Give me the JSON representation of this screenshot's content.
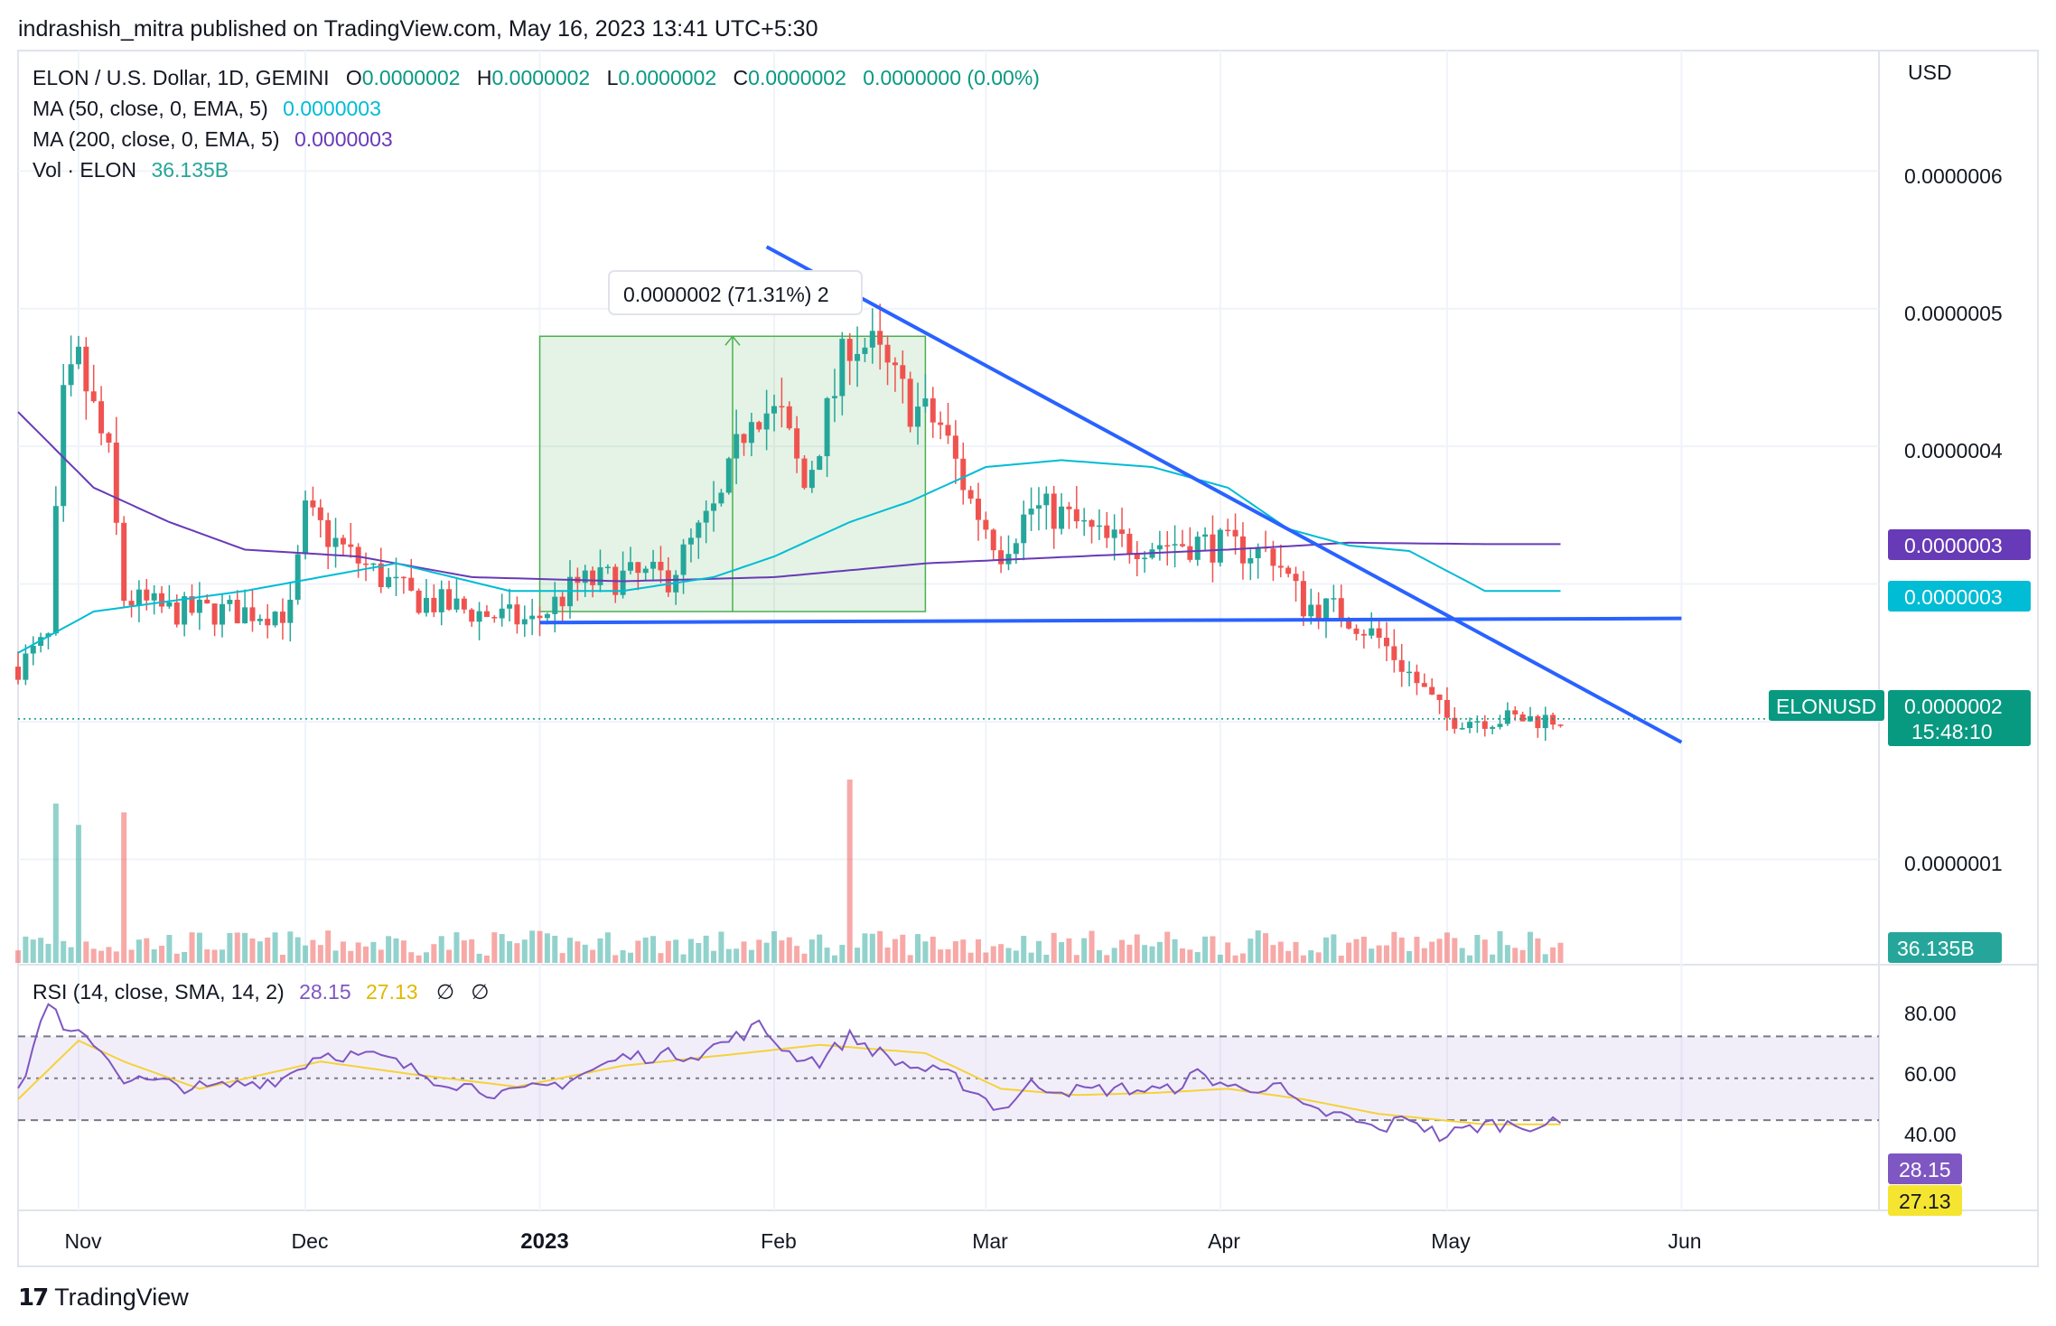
{
  "header": {
    "published": "indrashish_mitra published on TradingView.com, May 16, 2023 13:41 UTC+5:30"
  },
  "legend": {
    "symbol": "ELON / U.S. Dollar, 1D, GEMINI",
    "ohlc": [
      {
        "k": "O",
        "v": "0.0000002"
      },
      {
        "k": "H",
        "v": "0.0000002"
      },
      {
        "k": "L",
        "v": "0.0000002"
      },
      {
        "k": "C",
        "v": "0.0000002"
      }
    ],
    "change": "0.0000000 (0.00%)",
    "ma50_label": "MA (50, close, 0, EMA, 5)",
    "ma50_value": "0.0000003",
    "ma200_label": "MA (200, close, 0, EMA, 5)",
    "ma200_value": "0.0000003",
    "vol_label": "Vol · ELON",
    "vol_value": "36.135B",
    "rsi_label": "RSI (14, close, SMA, 14, 2)",
    "rsi_value": "28.15",
    "rsi_ma_value": "27.13",
    "rsi_flags": [
      "∅",
      "∅"
    ]
  },
  "axis": {
    "currency": "USD",
    "price_ticks": [
      "0.0000006",
      "0.0000005",
      "0.0000004",
      "0.0000001"
    ],
    "rsi_ticks": [
      "80.00",
      "60.00",
      "40.00"
    ],
    "x_ticks": [
      {
        "label": "Nov",
        "date": "2022-11-01",
        "bold": false
      },
      {
        "label": "Dec",
        "date": "2022-12-01",
        "bold": false
      },
      {
        "label": "2023",
        "date": "2023-01-01",
        "bold": true
      },
      {
        "label": "Feb",
        "date": "2023-02-01",
        "bold": false
      },
      {
        "label": "Mar",
        "date": "2023-03-01",
        "bold": false
      },
      {
        "label": "Apr",
        "date": "2023-04-01",
        "bold": false
      },
      {
        "label": "May",
        "date": "2023-05-01",
        "bold": false
      },
      {
        "label": "Jun",
        "date": "2023-06-01",
        "bold": false
      }
    ]
  },
  "badges": {
    "ma200": "0.0000003",
    "ma50": "0.0000003",
    "symbol_tag": "ELONUSD",
    "last_price": "0.0000002",
    "countdown": "15:48:10",
    "volume": "36.135B",
    "rsi": "28.15",
    "rsi_ma": "27.13"
  },
  "measure_label": "0.0000002 (71.31%) 2",
  "footer": {
    "brand": "TradingView",
    "logo": "tradingview-logo-icon"
  },
  "colors": {
    "up": "#26a69a",
    "down": "#ef5350",
    "ma50": "#00bcd4",
    "ma200": "#673ab7",
    "rsi": "#7e57c2",
    "rsi_ma": "#f5d23a",
    "trendline": "#2962ff",
    "measure": "#4caf50"
  },
  "chart_data": {
    "type": "candlestick",
    "symbol": "ELONUSD",
    "x_range": [
      "2022-10-24",
      "2023-06-15"
    ],
    "last_bar_date": "2023-05-16",
    "price_axis": {
      "min": 6e-08,
      "max": 6.3e-07
    },
    "rsi_axis": {
      "min": 10,
      "max": 92,
      "band": [
        30,
        70
      ],
      "mid": 50
    },
    "waypoints_close": [
      [
        0,
        2.4e-07
      ],
      [
        4,
        2.6e-07
      ],
      [
        6,
        4.3e-07
      ],
      [
        8,
        4.6e-07
      ],
      [
        12,
        3.9e-07
      ],
      [
        14,
        2.9e-07
      ],
      [
        20,
        2.8e-07
      ],
      [
        30,
        2.8e-07
      ],
      [
        36,
        2.8e-07
      ],
      [
        38,
        3.5e-07
      ],
      [
        44,
        3.2e-07
      ],
      [
        52,
        2.9e-07
      ],
      [
        60,
        2.8e-07
      ],
      [
        68,
        2.72e-07
      ],
      [
        74,
        3e-07
      ],
      [
        80,
        3.05e-07
      ],
      [
        86,
        3.05e-07
      ],
      [
        93,
        3.6e-07
      ],
      [
        97,
        4.3e-07
      ],
      [
        101,
        4.2e-07
      ],
      [
        104,
        3.7e-07
      ],
      [
        108,
        4.4e-07
      ],
      [
        110,
        4.8e-07
      ],
      [
        113,
        4.7e-07
      ],
      [
        118,
        4.3e-07
      ],
      [
        122,
        4.15e-07
      ],
      [
        126,
        3.6e-07
      ],
      [
        130,
        3.25e-07
      ],
      [
        134,
        3.55e-07
      ],
      [
        138,
        3.5e-07
      ],
      [
        144,
        3.3e-07
      ],
      [
        150,
        3.3e-07
      ],
      [
        156,
        3.3e-07
      ],
      [
        162,
        3.25e-07
      ],
      [
        166,
        3.22e-07
      ],
      [
        170,
        2.85e-07
      ],
      [
        175,
        2.8e-07
      ],
      [
        180,
        2.6e-07
      ],
      [
        184,
        2.35e-07
      ],
      [
        189,
        2.02e-07
      ],
      [
        194,
        2.02e-07
      ]
    ],
    "ma50_waypoints": [
      [
        0,
        2.5e-07
      ],
      [
        10,
        2.8e-07
      ],
      [
        30,
        2.95e-07
      ],
      [
        50,
        3.15e-07
      ],
      [
        65,
        2.95e-07
      ],
      [
        80,
        2.95e-07
      ],
      [
        92,
        3.05e-07
      ],
      [
        100,
        3.2e-07
      ],
      [
        110,
        3.45e-07
      ],
      [
        118,
        3.6e-07
      ],
      [
        128,
        3.85e-07
      ],
      [
        138,
        3.9e-07
      ],
      [
        150,
        3.85e-07
      ],
      [
        160,
        3.7e-07
      ],
      [
        168,
        3.4e-07
      ],
      [
        176,
        3.28e-07
      ],
      [
        184,
        3.24e-07
      ],
      [
        194,
        2.95e-07
      ]
    ],
    "ma200_waypoints": [
      [
        0,
        4.25e-07
      ],
      [
        10,
        3.7e-07
      ],
      [
        20,
        3.45e-07
      ],
      [
        30,
        3.25e-07
      ],
      [
        45,
        3.2e-07
      ],
      [
        60,
        3.05e-07
      ],
      [
        80,
        3.02e-07
      ],
      [
        100,
        3.05e-07
      ],
      [
        120,
        3.15e-07
      ],
      [
        140,
        3.2e-07
      ],
      [
        160,
        3.25e-07
      ],
      [
        176,
        3.3e-07
      ],
      [
        194,
        3.29e-07
      ]
    ],
    "volume_peak_days": [
      5,
      8,
      14,
      110
    ],
    "rsi_waypoints": [
      [
        0,
        42
      ],
      [
        4,
        88
      ],
      [
        6,
        72
      ],
      [
        10,
        68
      ],
      [
        14,
        50
      ],
      [
        18,
        48
      ],
      [
        25,
        45
      ],
      [
        35,
        50
      ],
      [
        40,
        62
      ],
      [
        48,
        60
      ],
      [
        55,
        50
      ],
      [
        65,
        42
      ],
      [
        72,
        48
      ],
      [
        80,
        60
      ],
      [
        90,
        62
      ],
      [
        94,
        68
      ],
      [
        98,
        75
      ],
      [
        102,
        62
      ],
      [
        106,
        58
      ],
      [
        110,
        70
      ],
      [
        116,
        58
      ],
      [
        124,
        50
      ],
      [
        130,
        35
      ],
      [
        134,
        47
      ],
      [
        140,
        44
      ],
      [
        146,
        45
      ],
      [
        152,
        44
      ],
      [
        156,
        52
      ],
      [
        162,
        44
      ],
      [
        166,
        48
      ],
      [
        170,
        35
      ],
      [
        175,
        32
      ],
      [
        180,
        25
      ],
      [
        184,
        32
      ],
      [
        188,
        22
      ],
      [
        194,
        28
      ]
    ],
    "rsi_ma_waypoints": [
      [
        0,
        40
      ],
      [
        8,
        68
      ],
      [
        14,
        58
      ],
      [
        24,
        45
      ],
      [
        40,
        58
      ],
      [
        52,
        52
      ],
      [
        66,
        46
      ],
      [
        80,
        56
      ],
      [
        96,
        62
      ],
      [
        106,
        66
      ],
      [
        120,
        62
      ],
      [
        130,
        45
      ],
      [
        140,
        42
      ],
      [
        150,
        43
      ],
      [
        160,
        45
      ],
      [
        170,
        40
      ],
      [
        180,
        33
      ],
      [
        194,
        28
      ]
    ],
    "trendlines": [
      {
        "name": "descending-resistance",
        "from": [
          "2023-01-31",
          5.45e-07
        ],
        "to": [
          "2023-06-01",
          1.85e-07
        ]
      },
      {
        "name": "horizontal-support",
        "from": [
          "2023-01-01",
          2.72e-07
        ],
        "to": [
          "2023-06-01",
          2.75e-07
        ]
      }
    ],
    "measure_box": {
      "from": [
        "2023-01-01",
        2.8e-07
      ],
      "to": [
        "2023-02-21",
        4.8e-07
      ]
    }
  }
}
